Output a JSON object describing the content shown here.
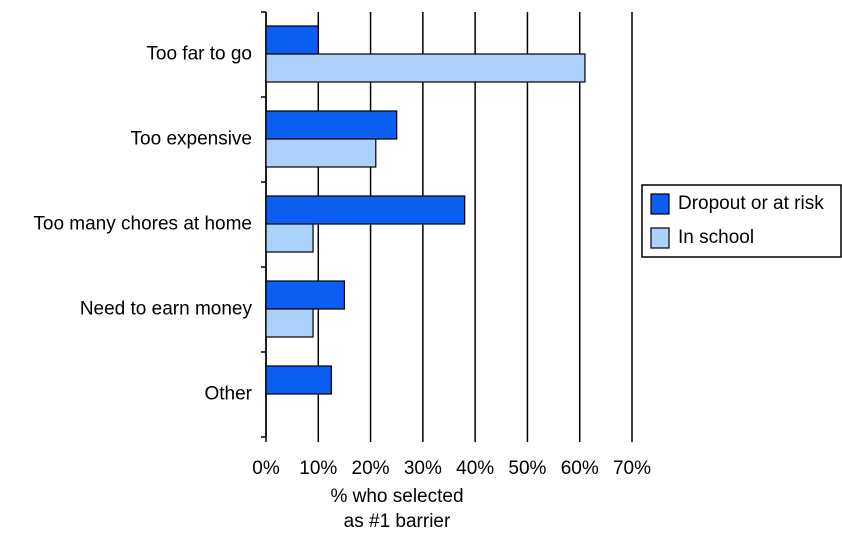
{
  "chart_data": {
    "type": "hbar",
    "categories": [
      "Too far to go",
      "Too expensive",
      "Too many chores at home",
      "Need to earn money",
      "Other"
    ],
    "series": [
      {
        "name": "Dropout or at risk",
        "color": "#0c5ef2",
        "values": [
          10,
          25,
          38,
          15,
          12.5
        ]
      },
      {
        "name": "In school",
        "color": "#acd2fb",
        "values": [
          61,
          21,
          9,
          9,
          null
        ]
      }
    ],
    "xlim": [
      0,
      70
    ],
    "xticks": [
      {
        "value": 0,
        "label": "0%"
      },
      {
        "value": 10,
        "label": "10%"
      },
      {
        "value": 20,
        "label": "20%"
      },
      {
        "value": 30,
        "label": "30%"
      },
      {
        "value": 40,
        "label": "40%"
      },
      {
        "value": 50,
        "label": "50%"
      },
      {
        "value": 60,
        "label": "60%"
      },
      {
        "value": 70,
        "label": "70%"
      }
    ],
    "x_label": [
      "% who selected",
      "as #1 barrier"
    ],
    "grid": true
  }
}
